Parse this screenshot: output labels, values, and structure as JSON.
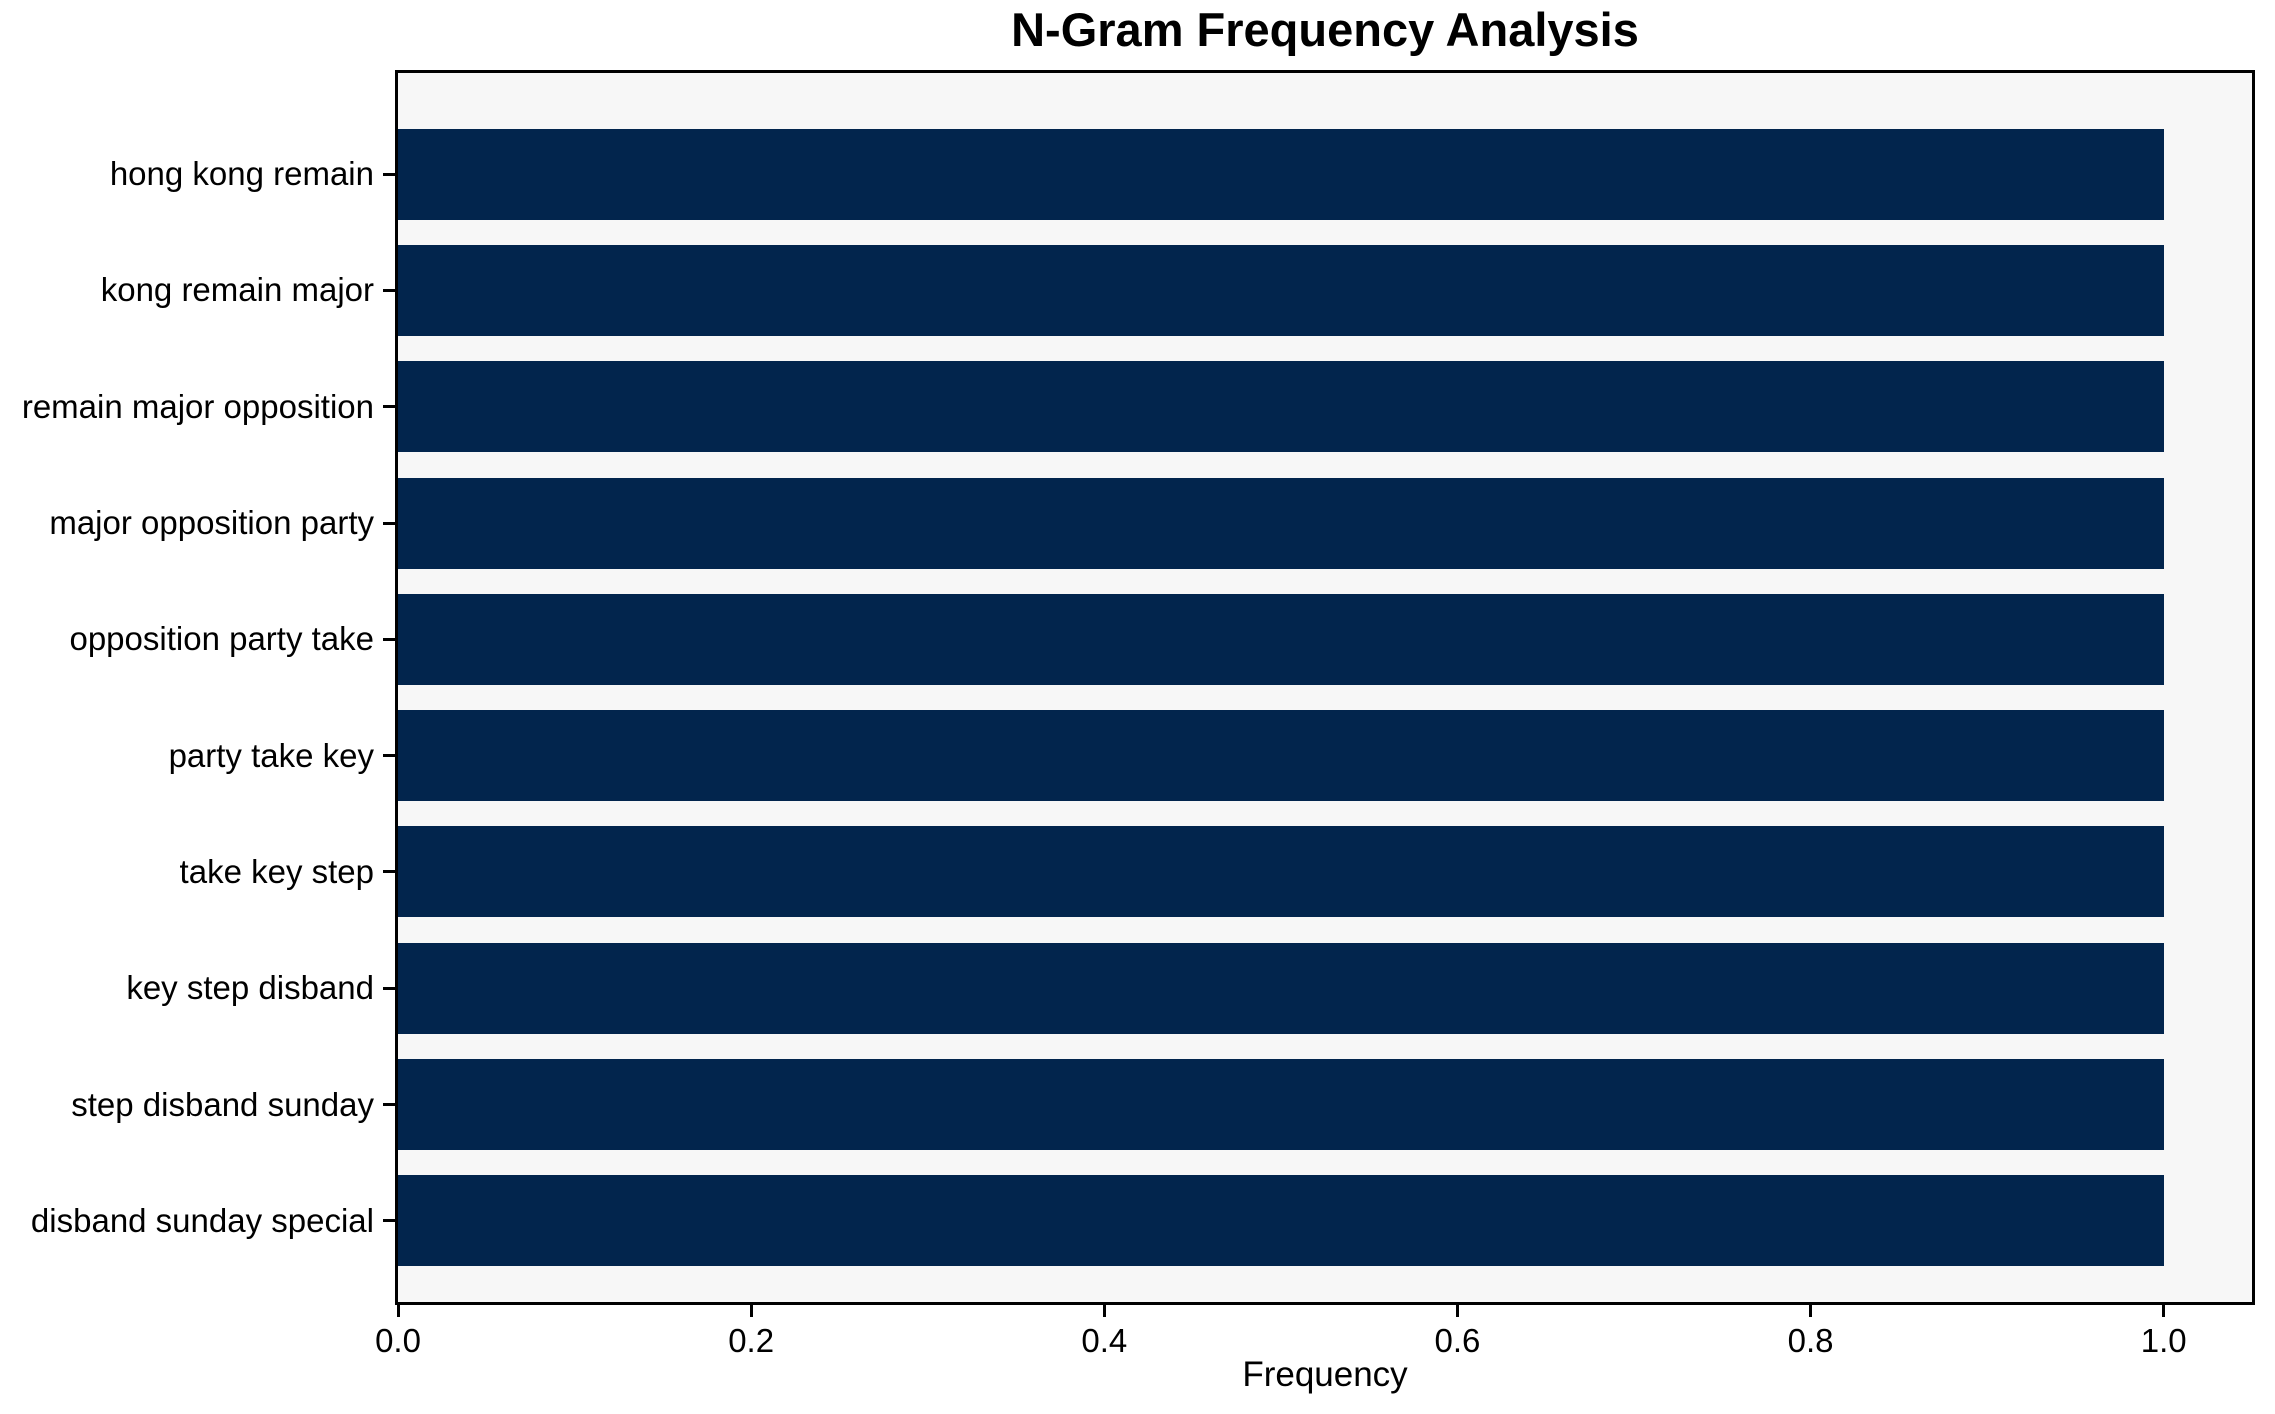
{
  "chart_data": {
    "type": "bar",
    "orientation": "horizontal",
    "title": "N-Gram Frequency Analysis",
    "xlabel": "Frequency",
    "ylabel": "",
    "categories": [
      "hong kong remain",
      "kong remain major",
      "remain major opposition",
      "major opposition party",
      "opposition party take",
      "party take key",
      "take key step",
      "key step disband",
      "step disband sunday",
      "disband sunday special"
    ],
    "values": [
      1.0,
      1.0,
      1.0,
      1.0,
      1.0,
      1.0,
      1.0,
      1.0,
      1.0,
      1.0
    ],
    "xlim": [
      0,
      1.05
    ],
    "x_ticks": [
      0.0,
      0.2,
      0.4,
      0.6,
      0.8,
      1.0
    ],
    "x_tick_labels": [
      "0.0",
      "0.2",
      "0.4",
      "0.6",
      "0.8",
      "1.0"
    ],
    "grid": false,
    "legend": null,
    "colors": {
      "bar": "#02254d",
      "plot_background": "#f7f7f7",
      "figure_background": "#ffffff",
      "axis": "#000000",
      "text": "#000000"
    }
  }
}
